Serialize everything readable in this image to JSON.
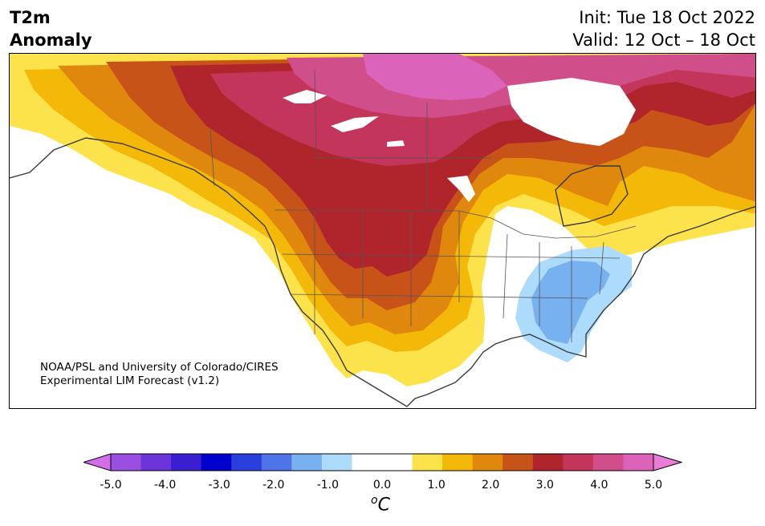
{
  "title": {
    "line1": "T2m",
    "line2": "Anomaly"
  },
  "forecast": {
    "init": "Init: Tue 18 Oct 2022",
    "valid": "Valid: 12 Oct – 18 Oct"
  },
  "credit": {
    "line1": "NOAA/PSL and University of Colorado/CIRES",
    "line2": "Experimental LIM Forecast (v1.2)"
  },
  "colorbar": {
    "colors": [
      "#d46ee8",
      "#9b4fe0",
      "#6a35d9",
      "#3a1fd0",
      "#0000cc",
      "#2a3fdc",
      "#4f73e8",
      "#78b1f0",
      "#acdbfb",
      "#ffffff",
      "#ffffff",
      "#fde34b",
      "#f4b808",
      "#e0870e",
      "#c85318",
      "#b0242b",
      "#c3355a",
      "#d04f8a",
      "#db63b9",
      "#e97cd6"
    ],
    "ticks": [
      "-5.0",
      "-4.0",
      "-3.0",
      "-2.0",
      "-1.0",
      "0.0",
      "1.0",
      "2.0",
      "3.0",
      "4.0",
      "5.0"
    ],
    "unit_sup": "o",
    "unit": "C"
  },
  "map_colors": {
    "a1": "#fde34b",
    "a2": "#f4b808",
    "a3": "#e0870e",
    "a4": "#c85318",
    "a5": "#b0242b",
    "a6": "#c3355a",
    "a7": "#d04f8a",
    "a8": "#db63b9",
    "c1": "#acdbfb",
    "c2": "#78b1f0"
  }
}
